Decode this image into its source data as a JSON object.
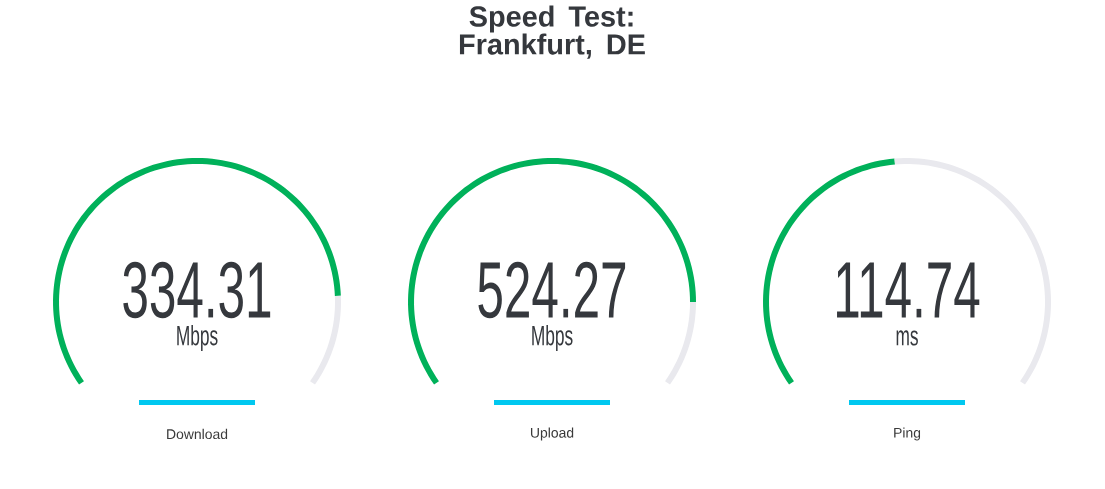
{
  "chart_data": [
    {
      "type": "donut",
      "categories": [
        null,
        null
      ],
      "values": [
        85,
        15
      ],
      "colors": [
        "#00b15a",
        "#e9e9ee"
      ],
      "annotations": [
        "334.31",
        "Mbps"
      ],
      "xlabel": "Download"
    },
    {
      "type": "donut",
      "title": "Speed Test: Frankfurt, DE",
      "categories": [
        null,
        null
      ],
      "values": [
        86,
        14
      ],
      "colors": [
        "#00b15a",
        "#e9e9ee"
      ],
      "annotations": [
        "524.27",
        "Mbps"
      ],
      "xlabel": "Upload"
    },
    {
      "type": "donut",
      "categories": [
        null,
        null
      ],
      "values": [
        48,
        52
      ],
      "colors": [
        "#00b15a",
        "#e9e9ee"
      ],
      "annotations": [
        "114.74",
        "ms"
      ],
      "xlabel": "Ping"
    }
  ]
}
